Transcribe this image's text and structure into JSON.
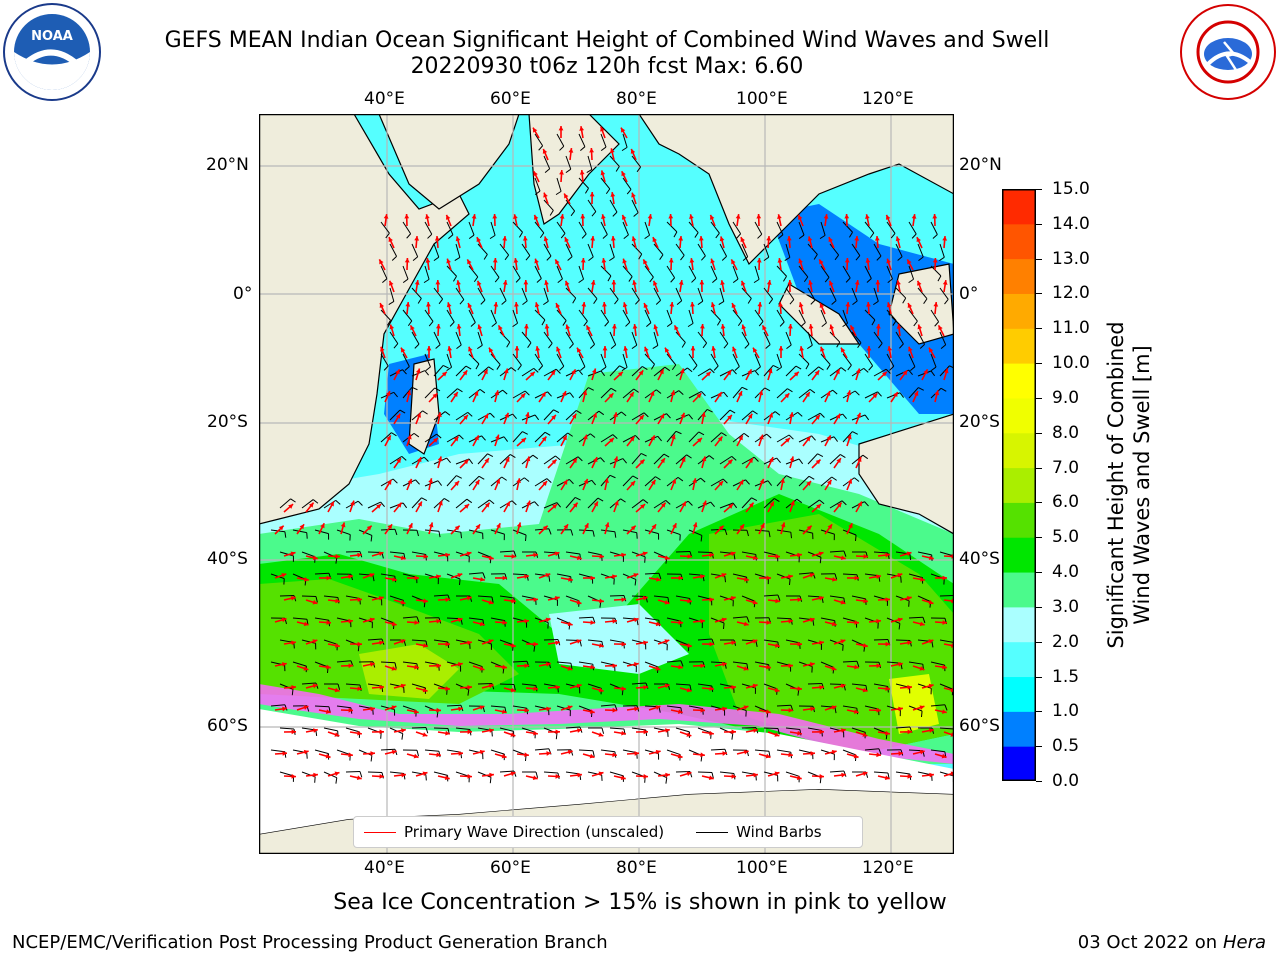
{
  "header": {
    "title_line1": "GEFS MEAN Indian Ocean Significant Height of Combined Wind Waves and Swell",
    "title_line2": "20220930 t06z 120h fcst   Max: 6.60"
  },
  "logos": {
    "noaa_text": "NOAA",
    "nws_text": "NATIONAL WEATHER SERVICE"
  },
  "map": {
    "lon_ticks_top": [
      "40°E",
      "60°E",
      "80°E",
      "100°E",
      "120°E"
    ],
    "lon_ticks_bottom": [
      "40°E",
      "60°E",
      "80°E",
      "100°E",
      "120°E"
    ],
    "lat_ticks_left": [
      "20°N",
      "0°",
      "20°S",
      "40°S",
      "60°S"
    ],
    "lat_ticks_right": [
      "20°N",
      "0°",
      "20°S",
      "40°S",
      "60°S"
    ],
    "land_color": "#efeddc",
    "ocean_colors": {
      "calm": "#00ffff",
      "light": "#aaffff",
      "moderate": "#4bfa8c",
      "fresh": "#00e600",
      "strong": "#55e100",
      "high": "#aaee00",
      "very_high": "#e1ff00"
    }
  },
  "legend": {
    "wave_label": "Primary Wave Direction (unscaled)",
    "wind_label": "Wind Barbs",
    "wave_color": "#ff0000",
    "wind_color": "#000000"
  },
  "colorbar": {
    "label_line1": "Significant Height of Combined",
    "label_line2": "Wind Waves and Swell [m]",
    "ticks": [
      "15.0",
      "14.0",
      "13.0",
      "12.0",
      "11.0",
      "10.0",
      "9.0",
      "8.0",
      "7.0",
      "6.0",
      "5.0",
      "4.0",
      "3.0",
      "2.0",
      "1.5",
      "1.0",
      "0.5",
      "0.0"
    ],
    "colors": [
      "#0000ff",
      "#0080ff",
      "#00ffff",
      "#55ffff",
      "#aaffff",
      "#4bfa8c",
      "#00e600",
      "#55e100",
      "#aaee00",
      "#d7f500",
      "#f0ff00",
      "#ffff00",
      "#ffcc00",
      "#ffaa00",
      "#ff8000",
      "#ff5500",
      "#ff2a00",
      "#ff0000"
    ]
  },
  "footer": {
    "caption": "Sea Ice Concentration > 15% is shown in pink to yellow",
    "left": "NCEP/EMC/Verification Post Processing Product Generation Branch",
    "right_prefix": "03 Oct 2022 on ",
    "right_host": "Hera"
  }
}
